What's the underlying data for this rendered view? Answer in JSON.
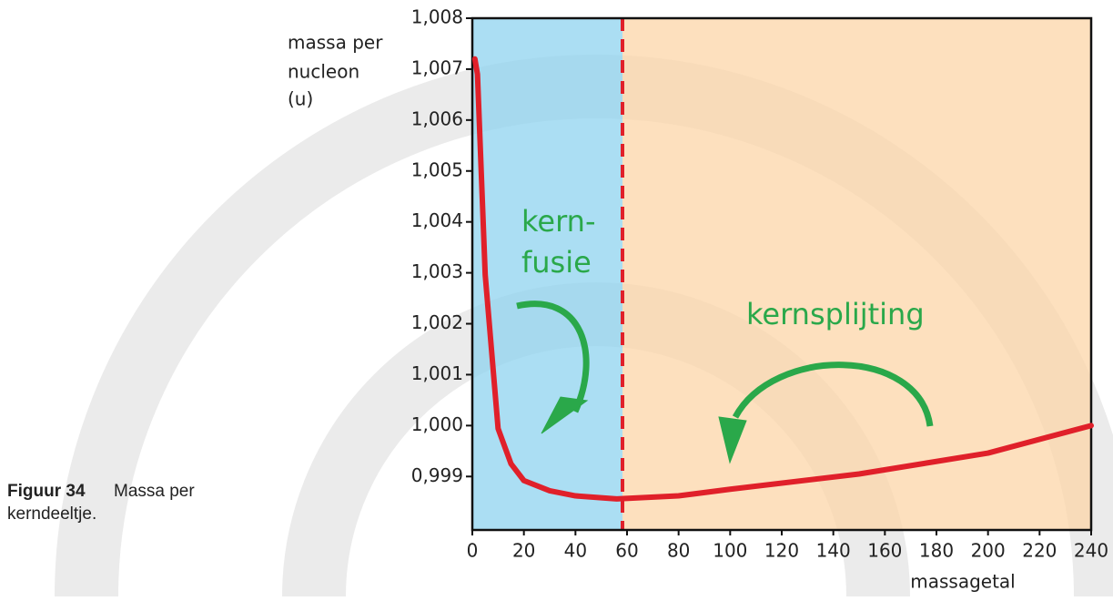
{
  "chart_data": {
    "type": "line",
    "y_label": [
      "massa per",
      "nucleon",
      "(u)"
    ],
    "x_label": "massagetal",
    "annotations": {
      "fusion": [
        "kern-",
        "fusie"
      ],
      "fission": "kernsplijting"
    },
    "x": [
      1,
      2,
      5,
      10,
      15,
      20,
      30,
      40,
      56,
      80,
      100,
      150,
      200,
      240
    ],
    "series": [
      {
        "color": "#e0202a",
        "values": [
          1.0072,
          1.0069,
          1.00296,
          0.99994,
          0.99925,
          0.99892,
          0.99872,
          0.99862,
          0.99856,
          0.99862,
          0.99875,
          0.99905,
          0.99946,
          1.0
        ]
      }
    ],
    "xlim": [
      0,
      240
    ],
    "xticks": [
      0,
      20,
      40,
      60,
      80,
      100,
      120,
      140,
      160,
      180,
      200,
      220,
      240
    ],
    "ylim": [
      0.99795,
      1.008
    ],
    "yticks": [
      {
        "value": 0.999,
        "label": "0,999"
      },
      {
        "value": 1.0,
        "label": "1,000"
      },
      {
        "value": 1.001,
        "label": "1,001"
      },
      {
        "value": 1.002,
        "label": "1,002"
      },
      {
        "value": 1.003,
        "label": "1,003"
      },
      {
        "value": 1.004,
        "label": "1,004"
      },
      {
        "value": 1.005,
        "label": "1,005"
      },
      {
        "value": 1.006,
        "label": "1,006"
      },
      {
        "value": 1.007,
        "label": "1,007"
      },
      {
        "value": 1.008,
        "label": "1,008"
      }
    ]
  },
  "figure_caption": {
    "label": "Figuur 34",
    "text": [
      "Massa per",
      "kerndeeltje."
    ]
  }
}
